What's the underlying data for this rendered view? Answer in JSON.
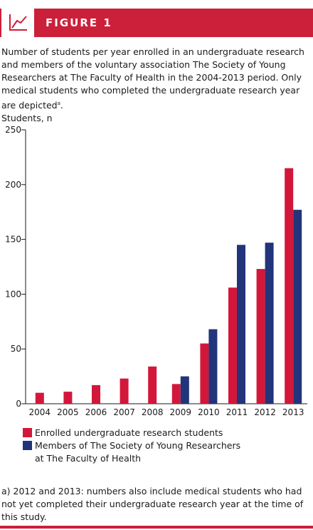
{
  "header": {
    "title": "FIGURE 1",
    "icon": "line-chart-icon"
  },
  "caption": {
    "text": "Number of students per year enrolled in an undergraduate research and members of the voluntary association The Society of Young Researchers at The Faculty of Health in the 2004-2013 period. Only medical students who completed the undergraduate research year are depicted",
    "superscript": "a",
    "end": "."
  },
  "footnote": {
    "text": "a) 2012 and 2013: numbers also include medical students who had not yet completed their undergraduate research year at the time of this study."
  },
  "colors": {
    "accent": "#cc1f3a",
    "enrolled": "#d3173a",
    "members": "#22347a"
  },
  "chart_data": {
    "type": "bar",
    "ylabel": "Students, n",
    "xlabel": "",
    "ylim": [
      0,
      250
    ],
    "yticks": [
      0,
      50,
      100,
      150,
      200,
      250
    ],
    "grid": false,
    "legend_position": "bottom-left",
    "categories": [
      "2004",
      "2005",
      "2006",
      "2007",
      "2008",
      "2009",
      "2010",
      "2011",
      "2012",
      "2013"
    ],
    "series": [
      {
        "name": "Enrolled undergraduate research students",
        "color": "#d3173a",
        "values": [
          10,
          11,
          17,
          23,
          34,
          18,
          55,
          106,
          123,
          215
        ]
      },
      {
        "name": "Members of The Society of Young Researchers at The Faculty of Health",
        "color": "#22347a",
        "values": [
          null,
          null,
          null,
          null,
          null,
          25,
          68,
          145,
          147,
          177
        ]
      }
    ]
  }
}
